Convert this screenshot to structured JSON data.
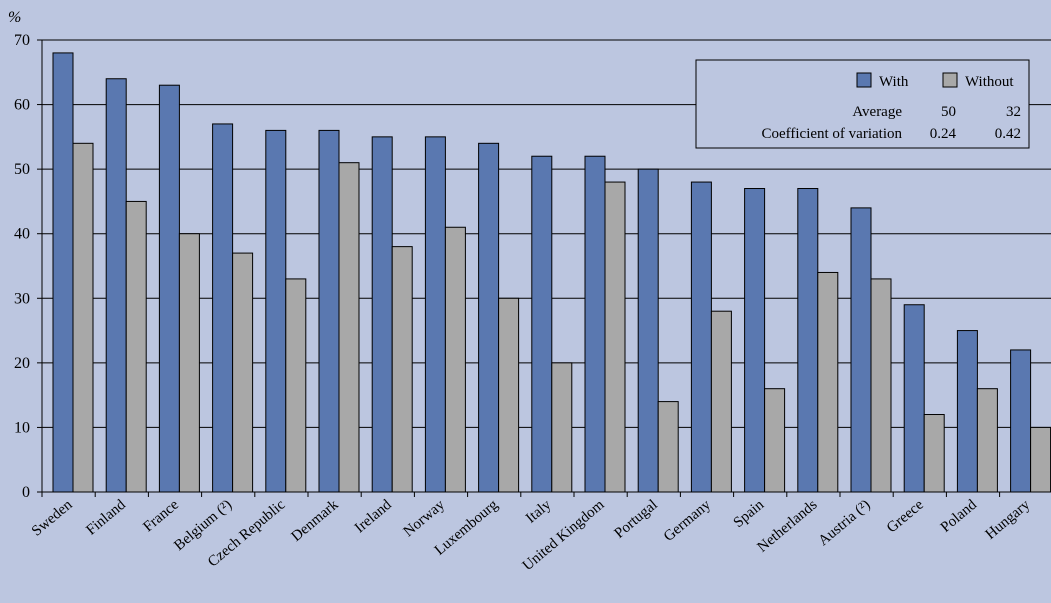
{
  "chart_data": {
    "type": "bar",
    "title": "",
    "xlabel": "",
    "ylabel": "%",
    "ylim": [
      0,
      70
    ],
    "yticks": [
      0,
      10,
      20,
      30,
      40,
      50,
      60,
      70
    ],
    "grid": true,
    "legend_position": "top-right",
    "categories": [
      "Sweden",
      "Finland",
      "France",
      "Belgium (²)",
      "Czech Republic",
      "Denmark",
      "Ireland",
      "Norway",
      "Luxembourg",
      "Italy",
      "United Kingdom",
      "Portugal",
      "Germany",
      "Spain",
      "Netherlands",
      "Austria (²)",
      "Greece",
      "Poland",
      "Hungary"
    ],
    "series": [
      {
        "name": "With",
        "color": "#5a78b0",
        "values": [
          68,
          64,
          63,
          57,
          56,
          56,
          55,
          55,
          54,
          52,
          52,
          50,
          48,
          47,
          47,
          44,
          29,
          25,
          22
        ]
      },
      {
        "name": "Without",
        "color": "#a8a8a8",
        "values": [
          54,
          45,
          40,
          37,
          33,
          51,
          38,
          41,
          30,
          20,
          48,
          14,
          28,
          16,
          34,
          33,
          12,
          16,
          10
        ]
      }
    ],
    "legend_table": {
      "rows": [
        {
          "label": "Average",
          "with": "50",
          "without": "32"
        },
        {
          "label": "Coefficient of variation",
          "with": "0.24",
          "without": "0.42"
        }
      ]
    }
  }
}
